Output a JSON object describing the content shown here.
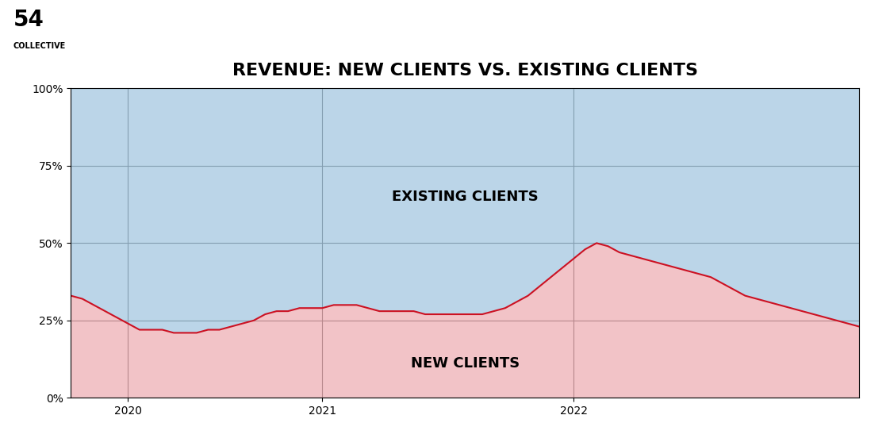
{
  "chart_data": {
    "type": "area",
    "title": "REVENUE: NEW CLIENTS VS. EXISTING CLIENTS",
    "categories": [
      null,
      null,
      null,
      null,
      null,
      "2020",
      null,
      null,
      null,
      null,
      null,
      null,
      null,
      null,
      null,
      null,
      null,
      null,
      null,
      null,
      null,
      null,
      "2021",
      null,
      null,
      null,
      null,
      null,
      null,
      null,
      null,
      null,
      null,
      null,
      null,
      null,
      null,
      null,
      null,
      null,
      null,
      null,
      null,
      null,
      "2022",
      null,
      null,
      null,
      null,
      null,
      null,
      null,
      null,
      null,
      null,
      null,
      null,
      null,
      null,
      null,
      null,
      null,
      null,
      null,
      null,
      null,
      null,
      null,
      null,
      null
    ],
    "values": [
      33,
      32,
      30,
      28,
      26,
      24,
      22,
      22,
      22,
      21,
      21,
      21,
      22,
      22,
      23,
      24,
      25,
      27,
      28,
      28,
      29,
      29,
      29,
      30,
      30,
      30,
      29,
      28,
      28,
      28,
      28,
      27,
      27,
      27,
      27,
      27,
      27,
      28,
      29,
      31,
      33,
      36,
      39,
      42,
      45,
      48,
      50,
      49,
      47,
      46,
      45,
      44,
      43,
      42,
      41,
      40,
      39,
      37,
      35,
      33,
      32,
      31,
      30,
      29,
      28,
      27,
      26,
      25,
      24,
      23
    ],
    "color": "#cc1122",
    "ylim": [
      0,
      100
    ],
    "yticks": [
      {
        "value": 0,
        "label": "0%"
      },
      {
        "value": 25,
        "label": "25%"
      },
      {
        "value": 50,
        "label": "50%"
      },
      {
        "value": 75,
        "label": "75%"
      },
      {
        "value": 100,
        "label": "100%"
      }
    ],
    "grid": true,
    "annotations": [
      "EXISTING CLIENTS",
      "NEW CLIENTS",
      "54",
      "COLLECTIVE"
    ]
  }
}
